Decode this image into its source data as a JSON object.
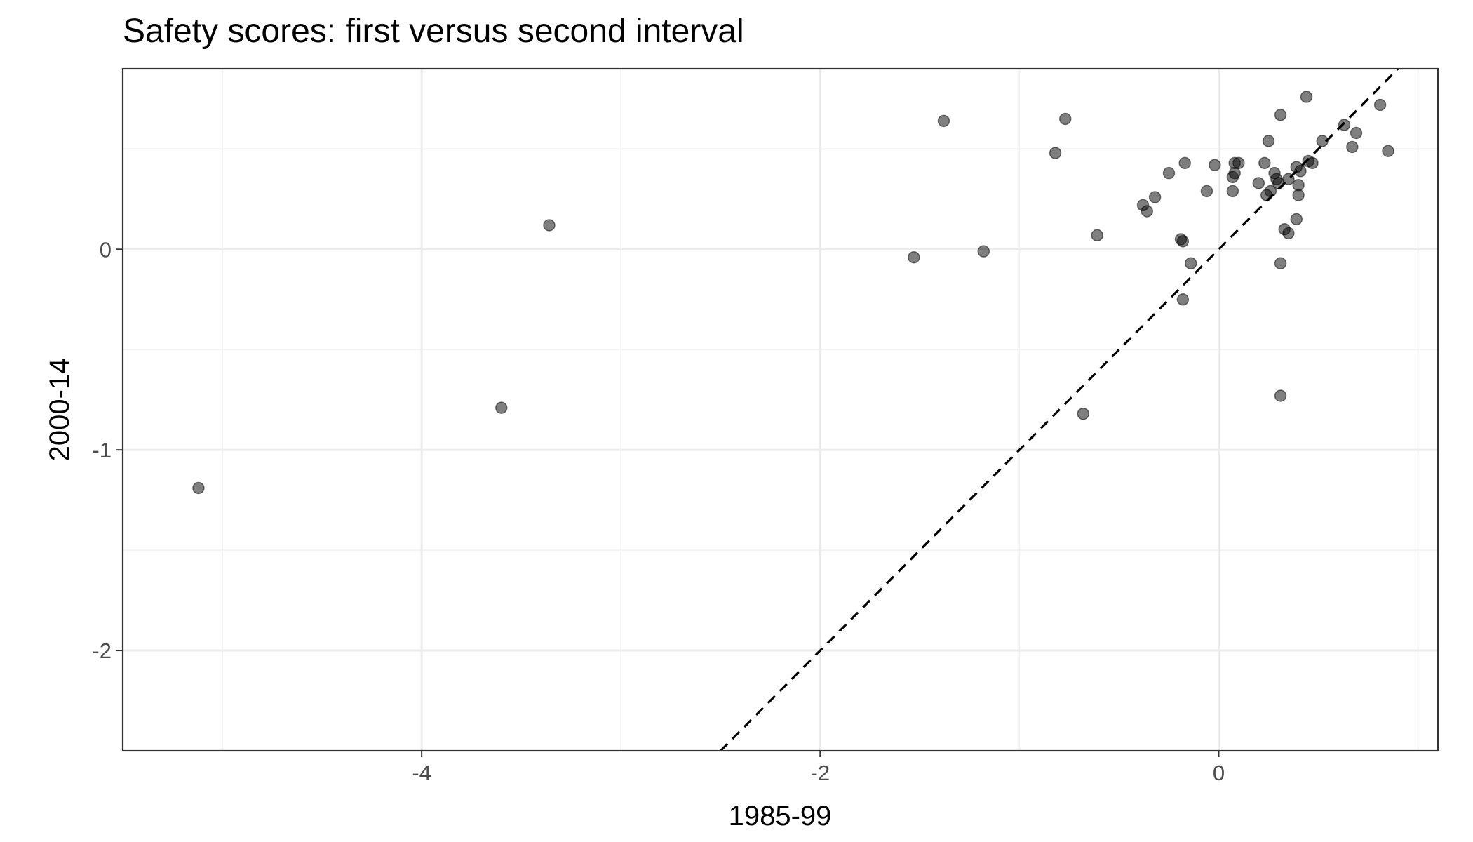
{
  "chart_data": {
    "type": "scatter",
    "title": "Safety scores: first versus second interval",
    "xlabel": "1985-99",
    "ylabel": "2000-14",
    "xlim": [
      -5.5,
      1.1
    ],
    "ylim": [
      -2.5,
      0.9
    ],
    "x_ticks": [
      -4,
      -2,
      0
    ],
    "x_tick_labels": [
      "-4",
      "-2",
      "0"
    ],
    "y_ticks": [
      -2,
      -1,
      0
    ],
    "y_tick_labels": [
      "-2",
      "-1",
      "0"
    ],
    "grid": true,
    "reference_line": {
      "style": "dashed",
      "slope": 1,
      "intercept": 0,
      "color": "#000000"
    },
    "point_color": "#000000",
    "point_opacity": 0.5,
    "points": [
      {
        "x": -5.12,
        "y": -1.19
      },
      {
        "x": -3.6,
        "y": -0.79
      },
      {
        "x": -3.36,
        "y": 0.12
      },
      {
        "x": -1.53,
        "y": -0.04
      },
      {
        "x": -1.38,
        "y": 0.64
      },
      {
        "x": -1.18,
        "y": -0.01
      },
      {
        "x": -0.82,
        "y": 0.48
      },
      {
        "x": -0.77,
        "y": 0.65
      },
      {
        "x": -0.68,
        "y": -0.82
      },
      {
        "x": -0.61,
        "y": 0.07
      },
      {
        "x": -0.38,
        "y": 0.22
      },
      {
        "x": -0.36,
        "y": 0.19
      },
      {
        "x": -0.32,
        "y": 0.26
      },
      {
        "x": -0.25,
        "y": 0.38
      },
      {
        "x": -0.19,
        "y": 0.05
      },
      {
        "x": -0.18,
        "y": 0.04
      },
      {
        "x": -0.17,
        "y": 0.43
      },
      {
        "x": -0.18,
        "y": -0.25
      },
      {
        "x": -0.14,
        "y": -0.07
      },
      {
        "x": -0.06,
        "y": 0.29
      },
      {
        "x": -0.02,
        "y": 0.42
      },
      {
        "x": 0.07,
        "y": 0.36
      },
      {
        "x": 0.07,
        "y": 0.29
      },
      {
        "x": 0.08,
        "y": 0.38
      },
      {
        "x": 0.08,
        "y": 0.43
      },
      {
        "x": 0.1,
        "y": 0.43
      },
      {
        "x": 0.2,
        "y": 0.33
      },
      {
        "x": 0.23,
        "y": 0.43
      },
      {
        "x": 0.25,
        "y": 0.54
      },
      {
        "x": 0.24,
        "y": 0.27
      },
      {
        "x": 0.26,
        "y": 0.29
      },
      {
        "x": 0.28,
        "y": 0.38
      },
      {
        "x": 0.29,
        "y": 0.35
      },
      {
        "x": 0.3,
        "y": 0.33
      },
      {
        "x": 0.31,
        "y": 0.67
      },
      {
        "x": 0.31,
        "y": -0.07
      },
      {
        "x": 0.31,
        "y": -0.73
      },
      {
        "x": 0.33,
        "y": 0.1
      },
      {
        "x": 0.35,
        "y": 0.35
      },
      {
        "x": 0.35,
        "y": 0.08
      },
      {
        "x": 0.39,
        "y": 0.41
      },
      {
        "x": 0.39,
        "y": 0.15
      },
      {
        "x": 0.4,
        "y": 0.32
      },
      {
        "x": 0.4,
        "y": 0.27
      },
      {
        "x": 0.41,
        "y": 0.39
      },
      {
        "x": 0.44,
        "y": 0.76
      },
      {
        "x": 0.45,
        "y": 0.44
      },
      {
        "x": 0.47,
        "y": 0.43
      },
      {
        "x": 0.52,
        "y": 0.54
      },
      {
        "x": 0.63,
        "y": 0.62
      },
      {
        "x": 0.67,
        "y": 0.51
      },
      {
        "x": 0.69,
        "y": 0.58
      },
      {
        "x": 0.81,
        "y": 0.72
      },
      {
        "x": 0.85,
        "y": 0.49
      }
    ]
  }
}
